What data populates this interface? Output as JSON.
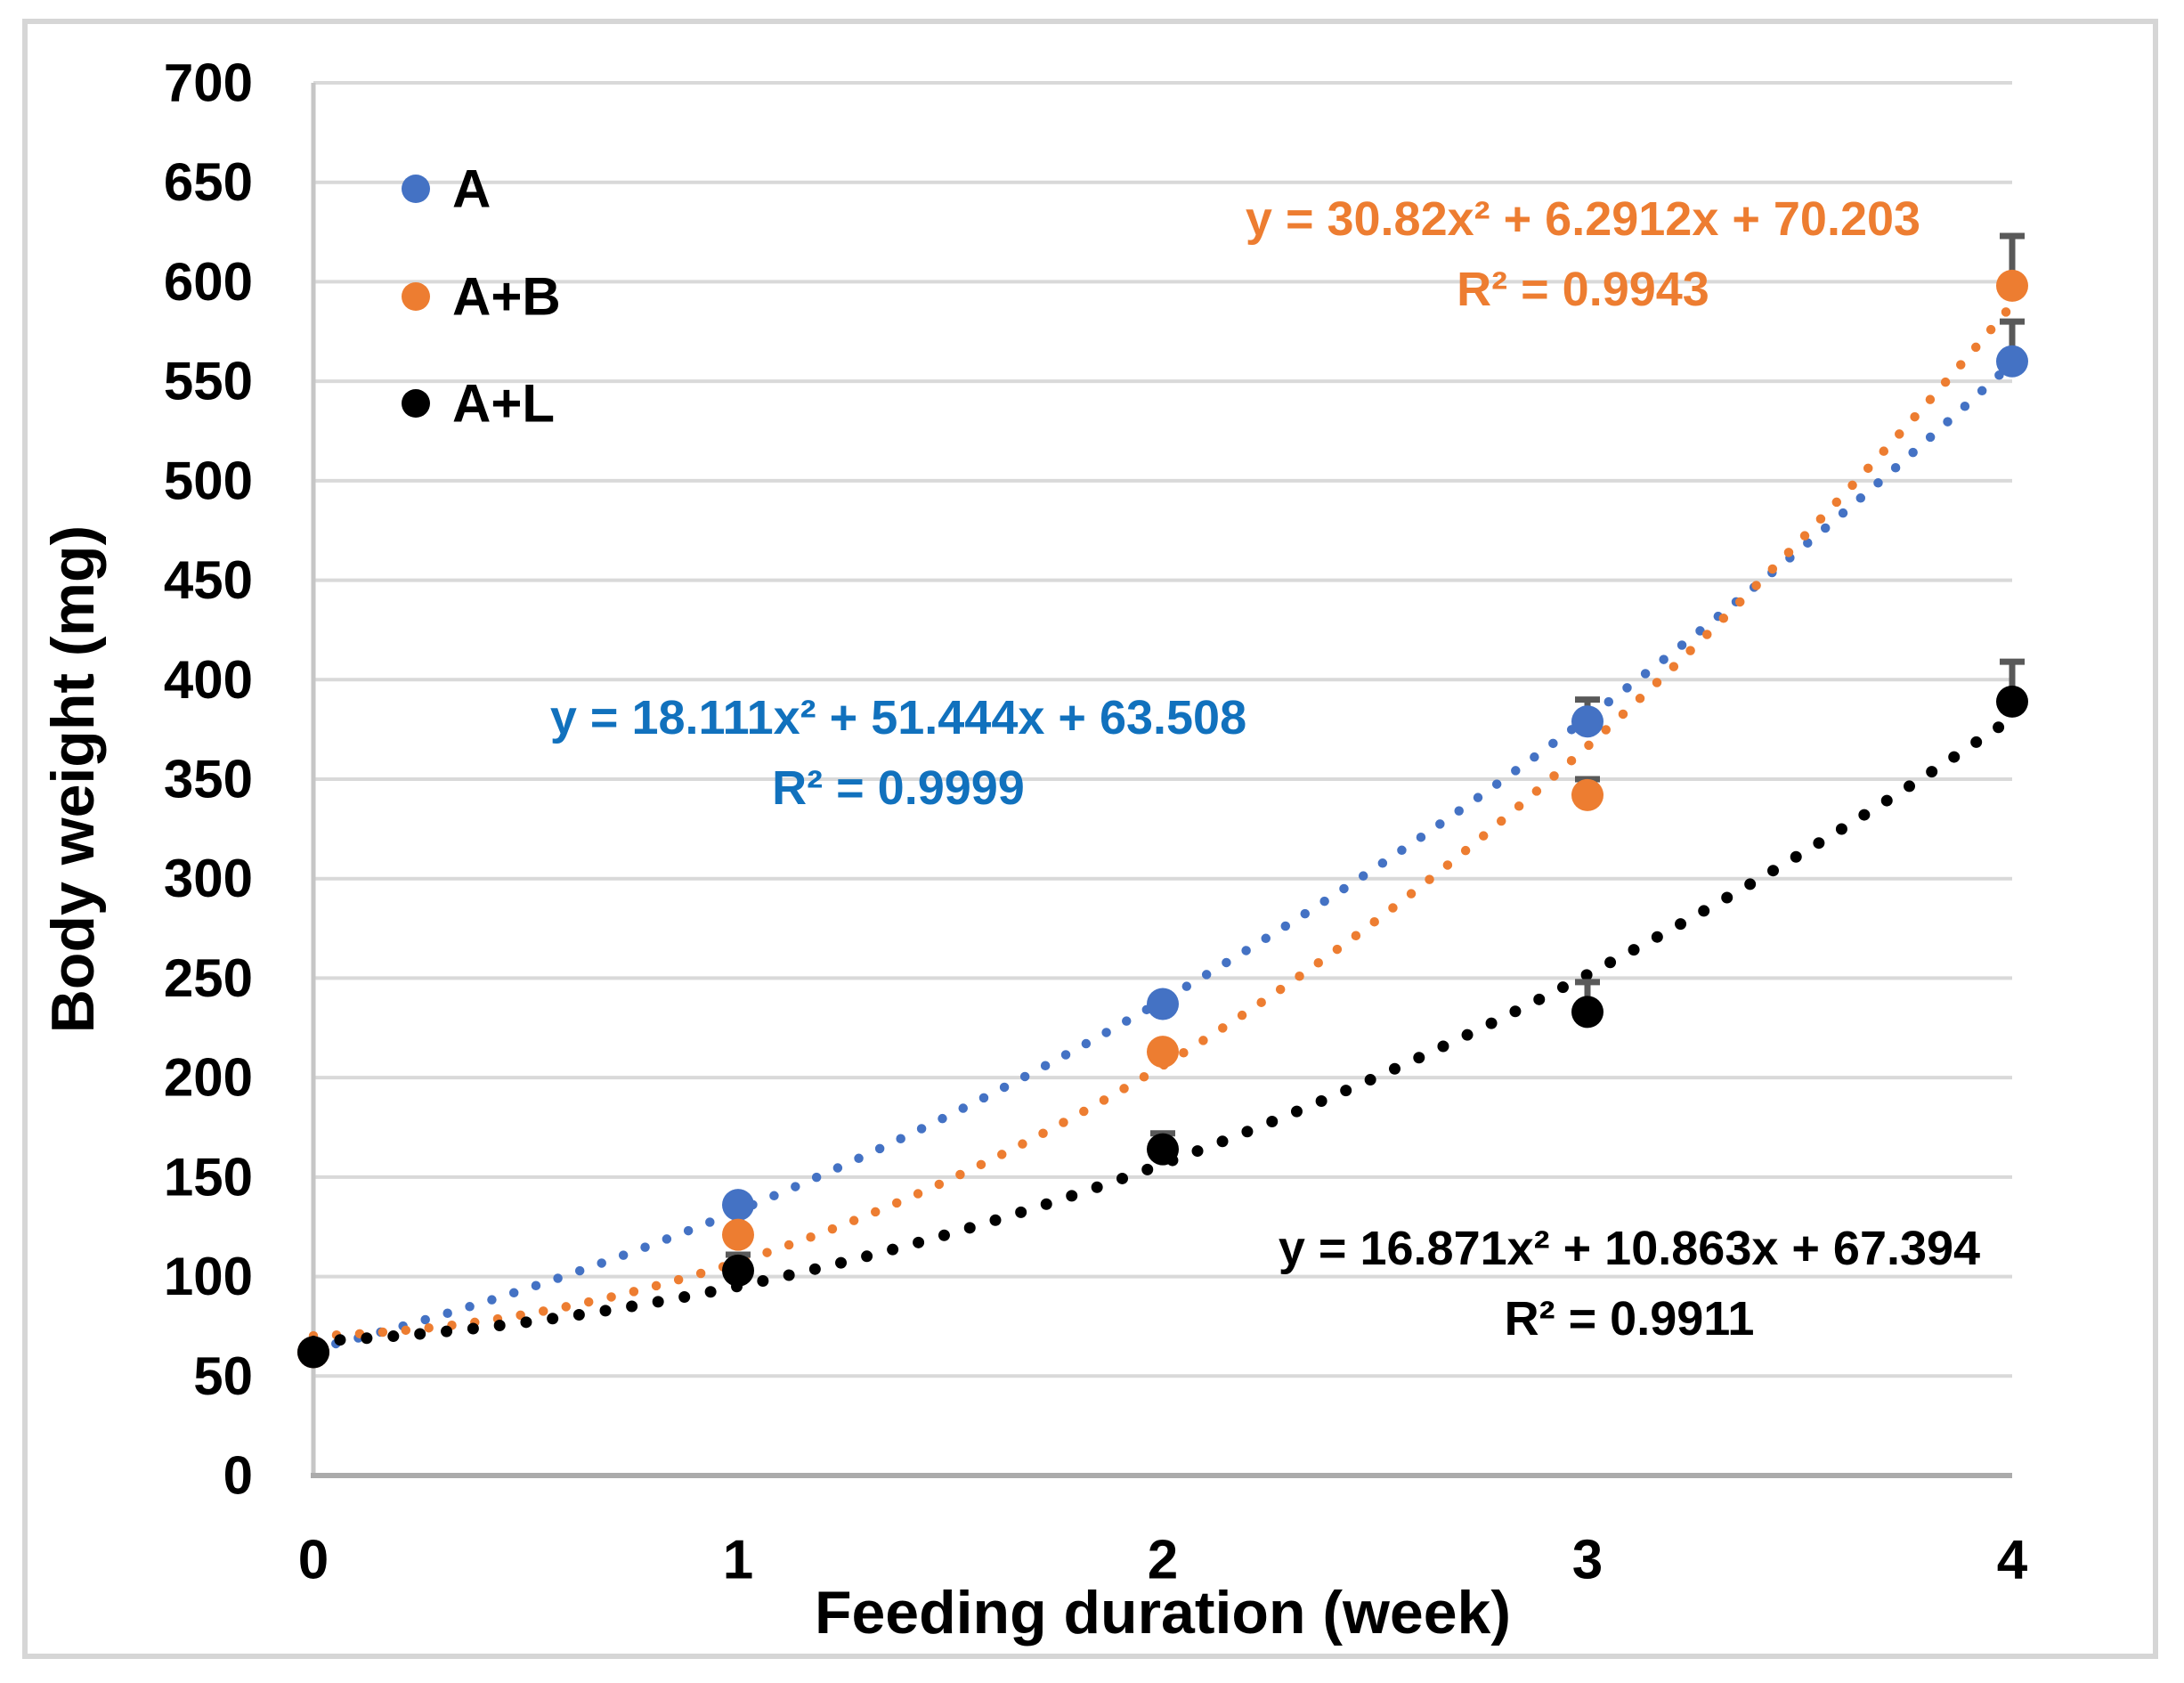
{
  "figure": {
    "xlabel": "Feeding duration (week)",
    "ylabel": "Body weight (mg)"
  },
  "legend": {
    "items": [
      {
        "label": "A",
        "color": "#4472C4"
      },
      {
        "label": "A+B",
        "color": "#ED7D31"
      },
      {
        "label": "A+L",
        "color": "#000000"
      }
    ]
  },
  "colors": {
    "gridline": "#D9D9D9",
    "y_axis_line": "#C6C6C6",
    "x_axis_line": "#ABABAB",
    "error_bar": "#595959",
    "frame": "#D6D6D6",
    "tick_text": "#000000"
  },
  "chart_data": {
    "type": "scatter",
    "x": [
      0,
      1,
      2,
      3,
      4
    ],
    "xticks": [
      "0",
      "1",
      "2",
      "3",
      "4"
    ],
    "yticks": [
      "0",
      "50",
      "100",
      "150",
      "200",
      "250",
      "300",
      "350",
      "400",
      "450",
      "500",
      "550",
      "600",
      "650",
      "700"
    ],
    "xlabel": "Feeding duration (week)",
    "ylabel": "Body weight (mg)",
    "xlim": [
      0,
      4
    ],
    "ylim": [
      0,
      700
    ],
    "ytick_step": 50,
    "grid": true,
    "legend_position": "inside-top-left",
    "series": [
      {
        "name": "A",
        "color": "#4472C4",
        "marker": "circle",
        "values": [
          62,
          136,
          237,
          379,
          560
        ],
        "error_plus": [
          0,
          0,
          0,
          11,
          20
        ],
        "trendline": {
          "kind": "quadratic",
          "coeffs": [
            18.111,
            51.444,
            63.508
          ],
          "equation": "y = 18.111x² + 51.444x + 63.508",
          "r2": "R² = 0.9999",
          "label_color": "#1171BD"
        }
      },
      {
        "name": "A+B",
        "color": "#ED7D31",
        "marker": "circle",
        "values": [
          62,
          121,
          213,
          342,
          598
        ],
        "error_plus": [
          0,
          0,
          0,
          8,
          25
        ],
        "trendline": {
          "kind": "quadratic",
          "coeffs": [
            30.82,
            6.2912,
            70.203
          ],
          "equation": "y = 30.82x² + 6.2912x + 70.203",
          "r2": "R² = 0.9943",
          "label_color": "#ED7D31"
        }
      },
      {
        "name": "A+L",
        "color": "#000000",
        "marker": "circle",
        "values": [
          62,
          103,
          164,
          233,
          389
        ],
        "error_plus": [
          0,
          8,
          8,
          15,
          20
        ],
        "trendline": {
          "kind": "quadratic",
          "coeffs": [
            16.871,
            10.863,
            67.394
          ],
          "equation": "y = 16.871x² + 10.863x + 67.394",
          "r2": "R² = 0.9911",
          "label_color": "#000000"
        }
      }
    ]
  }
}
